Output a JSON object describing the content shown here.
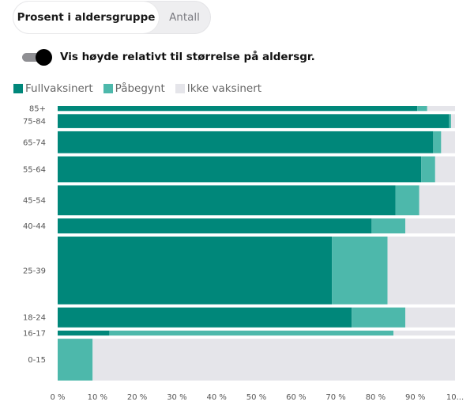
{
  "tabs": {
    "percent": "Prosent i aldersgruppe",
    "count": "Antall"
  },
  "toggle": {
    "label": "Vis høyde relativt til størrelse på aldersgr.",
    "on": true
  },
  "colors": {
    "full": "#00877a",
    "partial": "#4db8ab",
    "none": "#e5e5ea"
  },
  "chart_data": {
    "type": "bar",
    "orientation": "horizontal",
    "stacked": true,
    "legend": [
      "Fullvaksinert",
      "Påbegynt",
      "Ikke vaksinert"
    ],
    "x_ticks": [
      "0 %",
      "10 %",
      "20 %",
      "30 %",
      "40 %",
      "50 %",
      "60 %",
      "70 %",
      "80 %",
      "90 %",
      "10..."
    ],
    "xlim": [
      0,
      100
    ],
    "categories": [
      "85+",
      "75-84",
      "65-74",
      "55-64",
      "45-54",
      "40-44",
      "25-39",
      "18-24",
      "16-17",
      "0-15"
    ],
    "series": [
      {
        "name": "Fullvaksinert",
        "values": [
          90.5,
          98.5,
          94.5,
          91.5,
          85.0,
          79.0,
          69.0,
          74.0,
          13.0,
          0
        ]
      },
      {
        "name": "Påbegynt",
        "values": [
          2.5,
          0.5,
          2.0,
          3.5,
          6.0,
          8.5,
          14.0,
          13.5,
          71.5,
          8.8
        ]
      },
      {
        "name": "Ikke vaksinert",
        "values": [
          7.0,
          1.0,
          3.5,
          5.0,
          9.0,
          12.5,
          17.0,
          12.5,
          15.5,
          91.2
        ]
      }
    ],
    "relative_height": [
      0.25,
      0.7,
      1.1,
      1.3,
      1.5,
      0.75,
      3.4,
      1.0,
      0.25,
      2.1
    ]
  }
}
